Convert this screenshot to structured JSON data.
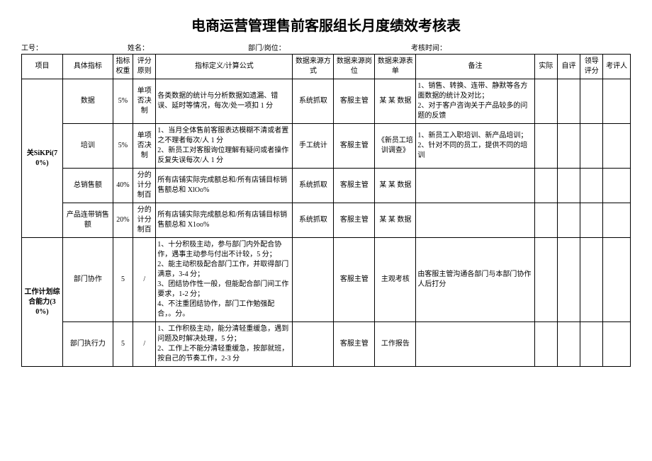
{
  "title": "电商运营管理售前客服组长月度绩效考核表",
  "meta": {
    "emp_no_label": "工号：",
    "name_label": "姓名：",
    "dept_label": "部门/岗位：",
    "period_label": "考核时间："
  },
  "headers": {
    "project": "项目",
    "indicator": "具体指标",
    "weight": "指标权重",
    "rule": "评分原则",
    "definition": "指标定义/计算公式",
    "source_method": "数据来源方式",
    "source_post": "数据来源岗位",
    "source_form": "数据来源表单",
    "note": "备注",
    "actual": "实际",
    "self": "自评",
    "leader": "领导评分",
    "assessor": "考评人"
  },
  "groups": [
    {
      "name": "关SiKPi(70%)",
      "rows": [
        {
          "indicator": "数据",
          "weight": "5%",
          "rule": "单项否决制",
          "definition": "各类数据的统计与分析数据如遗漏、错误、延时等情况，每次/处一项扣 1 分",
          "source_method": "系统抓取",
          "source_post": "客服主管",
          "source_form": "某 某 数据",
          "note": "1、销售、转换、连带、静默等各方面数据的统计及对比；\n2、对于客户咨询关于产品较多的问题的反馈"
        },
        {
          "indicator": "培训",
          "weight": "5%",
          "rule": "单项否决制",
          "definition": "1、当月全体售前客服表达模糊不清或者置之不理者每次/人 1 分\n2、新员工对客服询位理解有疑问或者操作反复失误每次/人 1 分",
          "source_method": "手工统计",
          "source_post": "客服主管",
          "source_form": "《新员工培训调查》",
          "note": "1、新员工入职培训、新产品培训；\n2、针对不同的员工，提供不同的培训"
        },
        {
          "indicator": "总销售额",
          "weight": "40%",
          "rule": "分的计分制百",
          "definition": "所有店铺实际完成额总和/所有店铺目标销售额总和 XlOo%",
          "source_method": "系统抓取",
          "source_post": "客服主管",
          "source_form": "某 某 数据",
          "note": ""
        },
        {
          "indicator": "产品连带销售额",
          "weight": "20%",
          "rule": "分的计分制百",
          "definition": "所有店铺实际完成额总和/所有店铺目标销售额总和 X1oo%",
          "source_method": "系统抓取",
          "source_post": "客服主管",
          "source_form": "某 某 数据",
          "note": ""
        }
      ]
    },
    {
      "name": "工作计划综合能力(30%)",
      "rows": [
        {
          "indicator": "部门协作",
          "weight": "5",
          "rule": "/",
          "definition": "1、十分积极主动，参与部门内外配合协作，遇事主动参与付出不计较，5 分；\n2、能主动积极配合部门工作，并取得部门满意，3-4 分；\n3、团结协作性一般，但能配合部门间工作要求，1-2 分；\n4、不注重团结协作，部门工作勉强配合，。分。",
          "source_method": "",
          "source_post": "客服主管",
          "source_form": "主观考核",
          "note": "由客服主管沟通各部门与本部门协作人后打分"
        },
        {
          "indicator": "部门执行力",
          "weight": "5",
          "rule": "/",
          "definition": "1、工作积极主动，能分清轻重缓急，遇到问题及时解决处理，5 分；\n2、工作上不能分清轻重缓急，按部就班，按自己的节奏工作，2-3 分",
          "source_method": "",
          "source_post": "客服主管",
          "source_form": "工作报告",
          "note": ""
        }
      ]
    }
  ]
}
